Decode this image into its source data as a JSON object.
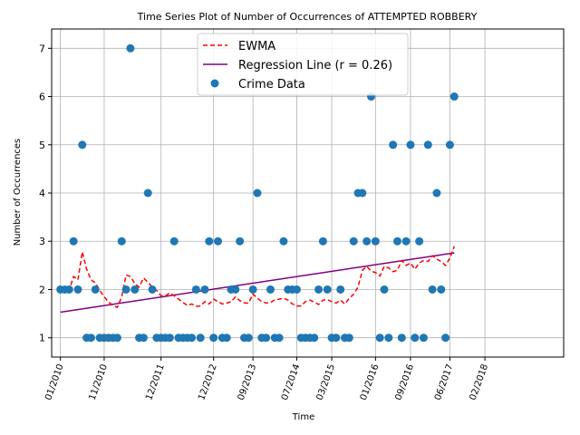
{
  "chart_data": {
    "type": "scatter",
    "title": "Time Series Plot of Number of Occurrences of ATTEMPTED ROBBERY",
    "xlabel": "Time",
    "ylabel": "Number of Occurrences",
    "x_unit": "month",
    "xlim": [
      "2009-11",
      "2019-08"
    ],
    "ylim": [
      0.6,
      7.4
    ],
    "x_ticks": [
      {
        "date": "2010-01",
        "label": "01/2010"
      },
      {
        "date": "2010-11",
        "label": "11/2010"
      },
      {
        "date": "2011-12",
        "label": "12/2011"
      },
      {
        "date": "2012-12",
        "label": "12/2012"
      },
      {
        "date": "2013-09",
        "label": "09/2013"
      },
      {
        "date": "2014-07",
        "label": "07/2014"
      },
      {
        "date": "2015-03",
        "label": "03/2015"
      },
      {
        "date": "2016-01",
        "label": "01/2016"
      },
      {
        "date": "2016-09",
        "label": "09/2016"
      },
      {
        "date": "2017-06",
        "label": "06/2017"
      },
      {
        "date": "2018-02",
        "label": "02/2018"
      }
    ],
    "y_ticks": [
      1,
      2,
      3,
      4,
      5,
      6,
      7
    ],
    "grid": true,
    "legend": {
      "placement": "top-center",
      "entries": [
        {
          "label": "EWMA",
          "style": "dashed-line",
          "color": "#ff0000"
        },
        {
          "label": "Regression Line (r = 0.26)",
          "style": "line",
          "color": "#800080"
        },
        {
          "label": "Crime Data",
          "style": "marker",
          "color": "#1f77b4"
        }
      ]
    },
    "series": [
      {
        "name": "Crime Data",
        "kind": "scatter",
        "color": "#1f77b4",
        "points": [
          [
            "2010-01",
            2
          ],
          [
            "2010-02",
            2
          ],
          [
            "2010-03",
            2
          ],
          [
            "2010-04",
            3
          ],
          [
            "2010-05",
            2
          ],
          [
            "2010-06",
            5
          ],
          [
            "2010-07",
            1
          ],
          [
            "2010-08",
            1
          ],
          [
            "2010-09",
            2
          ],
          [
            "2010-10",
            1
          ],
          [
            "2010-11",
            1
          ],
          [
            "2010-12",
            1
          ],
          [
            "2011-01",
            1
          ],
          [
            "2011-02",
            1
          ],
          [
            "2011-03",
            3
          ],
          [
            "2011-04",
            2
          ],
          [
            "2011-05",
            7
          ],
          [
            "2011-06",
            2
          ],
          [
            "2011-07",
            1
          ],
          [
            "2011-08",
            1
          ],
          [
            "2011-09",
            4
          ],
          [
            "2011-10",
            2
          ],
          [
            "2011-11",
            1
          ],
          [
            "2011-12",
            1
          ],
          [
            "2012-01",
            1
          ],
          [
            "2012-02",
            1
          ],
          [
            "2012-03",
            3
          ],
          [
            "2012-04",
            1
          ],
          [
            "2012-05",
            1
          ],
          [
            "2012-06",
            1
          ],
          [
            "2012-07",
            1
          ],
          [
            "2012-08",
            2
          ],
          [
            "2012-09",
            1
          ],
          [
            "2012-10",
            2
          ],
          [
            "2012-11",
            3
          ],
          [
            "2012-12",
            1
          ],
          [
            "2013-01",
            3
          ],
          [
            "2013-02",
            1
          ],
          [
            "2013-03",
            1
          ],
          [
            "2013-04",
            2
          ],
          [
            "2013-05",
            2
          ],
          [
            "2013-06",
            3
          ],
          [
            "2013-07",
            1
          ],
          [
            "2013-08",
            1
          ],
          [
            "2013-09",
            2
          ],
          [
            "2013-10",
            4
          ],
          [
            "2013-11",
            1
          ],
          [
            "2013-12",
            1
          ],
          [
            "2014-01",
            2
          ],
          [
            "2014-02",
            1
          ],
          [
            "2014-03",
            1
          ],
          [
            "2014-04",
            3
          ],
          [
            "2014-05",
            2
          ],
          [
            "2014-06",
            2
          ],
          [
            "2014-07",
            2
          ],
          [
            "2014-08",
            1
          ],
          [
            "2014-09",
            1
          ],
          [
            "2014-10",
            1
          ],
          [
            "2014-11",
            1
          ],
          [
            "2014-12",
            2
          ],
          [
            "2015-01",
            3
          ],
          [
            "2015-02",
            2
          ],
          [
            "2015-03",
            1
          ],
          [
            "2015-04",
            1
          ],
          [
            "2015-05",
            2
          ],
          [
            "2015-06",
            1
          ],
          [
            "2015-07",
            1
          ],
          [
            "2015-08",
            3
          ],
          [
            "2015-09",
            4
          ],
          [
            "2015-10",
            4
          ],
          [
            "2015-11",
            3
          ],
          [
            "2015-12",
            6
          ],
          [
            "2016-01",
            3
          ],
          [
            "2016-02",
            1
          ],
          [
            "2016-03",
            2
          ],
          [
            "2016-04",
            1
          ],
          [
            "2016-05",
            5
          ],
          [
            "2016-06",
            3
          ],
          [
            "2016-07",
            1
          ],
          [
            "2016-08",
            3
          ],
          [
            "2016-09",
            5
          ],
          [
            "2016-10",
            1
          ],
          [
            "2016-11",
            3
          ],
          [
            "2016-12",
            1
          ],
          [
            "2017-01",
            5
          ],
          [
            "2017-02",
            2
          ],
          [
            "2017-03",
            4
          ],
          [
            "2017-04",
            2
          ],
          [
            "2017-05",
            1
          ],
          [
            "2017-06",
            5
          ],
          [
            "2017-07",
            6
          ]
        ]
      },
      {
        "name": "EWMA",
        "kind": "line",
        "style": "dashed",
        "color": "#ff0000",
        "values": [
          2.0,
          2.0,
          1.98,
          2.27,
          2.2,
          2.78,
          2.42,
          2.2,
          2.14,
          1.98,
          1.85,
          1.74,
          1.67,
          1.63,
          1.85,
          2.3,
          2.27,
          2.12,
          2.05,
          2.24,
          2.15,
          2.05,
          1.98,
          1.87,
          1.87,
          1.93,
          1.87,
          1.8,
          1.73,
          1.67,
          1.7,
          1.65,
          1.66,
          1.75,
          1.7,
          1.8,
          1.75,
          1.7,
          1.72,
          1.75,
          1.85,
          1.77,
          1.72,
          1.72,
          1.91,
          1.82,
          1.75,
          1.72,
          1.73,
          1.79,
          1.8,
          1.82,
          1.78,
          1.7,
          1.66,
          1.66,
          1.75,
          1.78,
          1.74,
          1.69,
          1.78,
          1.79,
          1.75,
          1.72,
          1.78,
          1.7,
          1.82,
          1.9,
          2.05,
          2.4,
          2.48,
          2.38,
          2.35,
          2.28,
          2.48,
          2.45,
          2.37,
          2.4,
          2.6,
          2.5,
          2.55,
          2.42,
          2.55,
          2.6,
          2.58,
          2.7,
          2.63,
          2.58,
          2.5,
          2.65,
          2.9
        ]
      },
      {
        "name": "Regression Line (r = 0.26)",
        "kind": "line",
        "style": "solid",
        "color": "#800080",
        "start": [
          "2010-01",
          1.53
        ],
        "end": [
          "2017-07",
          2.76
        ]
      }
    ]
  }
}
